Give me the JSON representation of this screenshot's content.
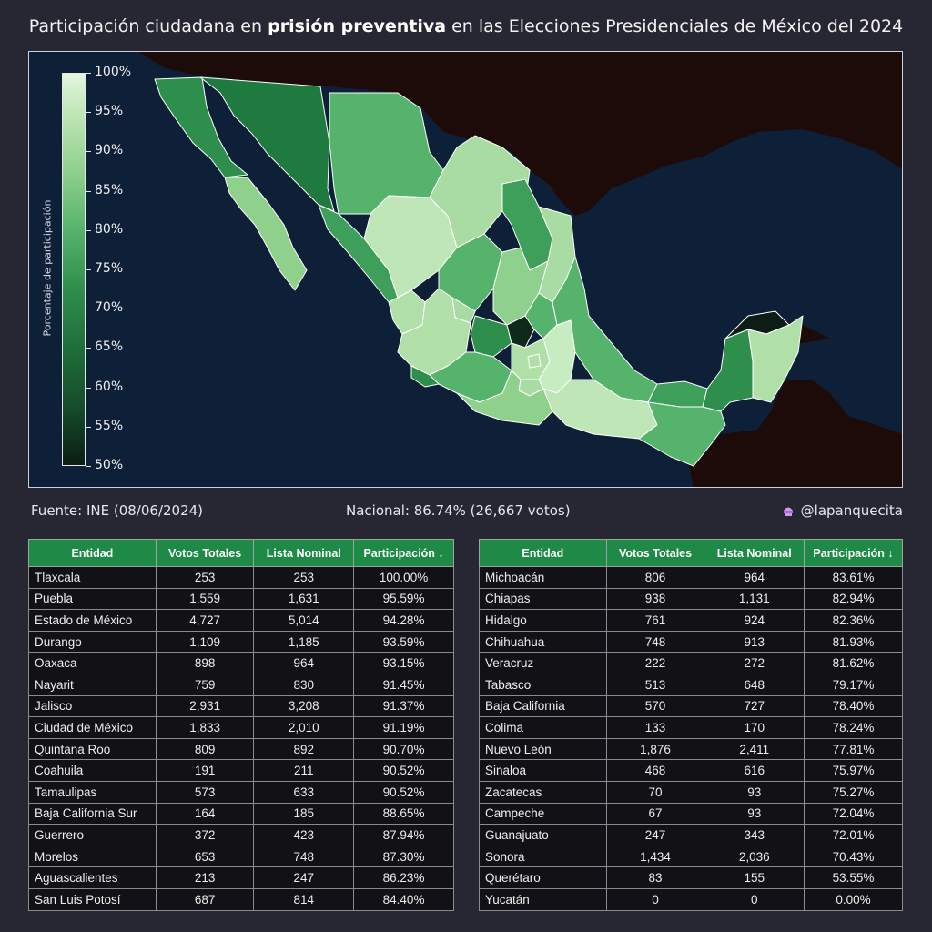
{
  "title": {
    "before": "Participación ciudadana en ",
    "bold": "prisión preventiva",
    "after": " en las Elecciones Presidenciales de México del 2024"
  },
  "colorbar": {
    "title": "Porcentaje de participación",
    "ticks": [
      "100%",
      "95%",
      "90%",
      "85%",
      "80%",
      "75%",
      "70%",
      "65%",
      "60%",
      "55%",
      "50%"
    ],
    "range": [
      50,
      100
    ],
    "colors": {
      "high": "#e3f6df",
      "mid": "#55b36c",
      "low": "#0b1d14"
    }
  },
  "map": {
    "ocean_color": "#0e1f38",
    "foreign_land_color": "#1c0b08",
    "border_color": "#ffffff"
  },
  "footer": {
    "source": "Fuente: INE (08/06/2024)",
    "national": "Nacional: 86.74%  (26,667 votos)",
    "handle": "@lapanquecita",
    "handle_icon": "cupcake-icon"
  },
  "table_headers": [
    "Entidad",
    "Votos Totales",
    "Lista Nominal",
    "Participación ↓"
  ],
  "table_left": [
    [
      "Tlaxcala",
      "253",
      "253",
      "100.00%"
    ],
    [
      "Puebla",
      "1,559",
      "1,631",
      "95.59%"
    ],
    [
      "Estado de México",
      "4,727",
      "5,014",
      "94.28%"
    ],
    [
      "Durango",
      "1,109",
      "1,185",
      "93.59%"
    ],
    [
      "Oaxaca",
      "898",
      "964",
      "93.15%"
    ],
    [
      "Nayarit",
      "759",
      "830",
      "91.45%"
    ],
    [
      "Jalisco",
      "2,931",
      "3,208",
      "91.37%"
    ],
    [
      "Ciudad de México",
      "1,833",
      "2,010",
      "91.19%"
    ],
    [
      "Quintana Roo",
      "809",
      "892",
      "90.70%"
    ],
    [
      "Coahuila",
      "191",
      "211",
      "90.52%"
    ],
    [
      "Tamaulipas",
      "573",
      "633",
      "90.52%"
    ],
    [
      "Baja California Sur",
      "164",
      "185",
      "88.65%"
    ],
    [
      "Guerrero",
      "372",
      "423",
      "87.94%"
    ],
    [
      "Morelos",
      "653",
      "748",
      "87.30%"
    ],
    [
      "Aguascalientes",
      "213",
      "247",
      "86.23%"
    ],
    [
      "San Luis Potosí",
      "687",
      "814",
      "84.40%"
    ]
  ],
  "table_right": [
    [
      "Michoacán",
      "806",
      "964",
      "83.61%"
    ],
    [
      "Chiapas",
      "938",
      "1,131",
      "82.94%"
    ],
    [
      "Hidalgo",
      "761",
      "924",
      "82.36%"
    ],
    [
      "Chihuahua",
      "748",
      "913",
      "81.93%"
    ],
    [
      "Veracruz",
      "222",
      "272",
      "81.62%"
    ],
    [
      "Tabasco",
      "513",
      "648",
      "79.17%"
    ],
    [
      "Baja California",
      "570",
      "727",
      "78.40%"
    ],
    [
      "Colima",
      "133",
      "170",
      "78.24%"
    ],
    [
      "Nuevo León",
      "1,876",
      "2,411",
      "77.81%"
    ],
    [
      "Sinaloa",
      "468",
      "616",
      "75.97%"
    ],
    [
      "Zacatecas",
      "70",
      "93",
      "75.27%"
    ],
    [
      "Campeche",
      "67",
      "93",
      "72.04%"
    ],
    [
      "Guanajuato",
      "247",
      "343",
      "72.01%"
    ],
    [
      "Sonora",
      "1,434",
      "2,036",
      "70.43%"
    ],
    [
      "Querétaro",
      "83",
      "155",
      "53.55%"
    ],
    [
      "Yucatán",
      "0",
      "0",
      "0.00%"
    ]
  ]
}
